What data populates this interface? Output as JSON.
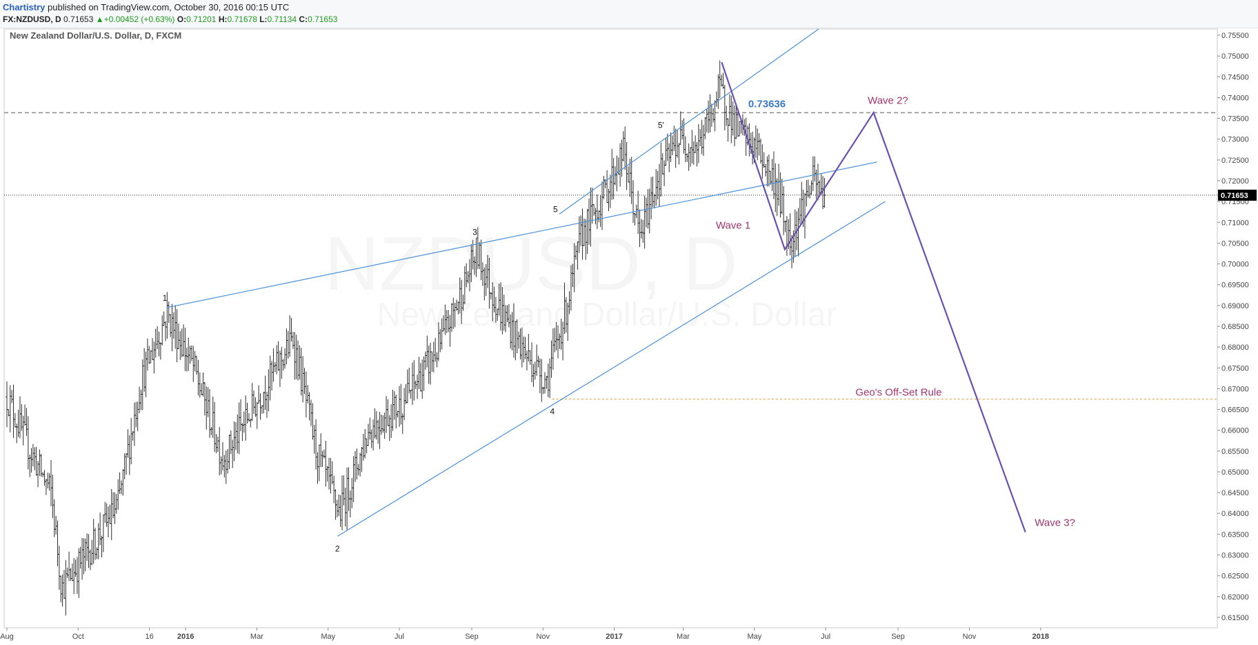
{
  "header": {
    "author": "Chartistry",
    "published_text": "published on TradingView.com, October 30, 2016 00:15 UTC",
    "symbol": "FX:NZDUSD, D",
    "last": "0.71653",
    "change": "+0.00452 (+0.63%)",
    "o_label": "O:",
    "o_value": "0.71201",
    "h_label": "H:",
    "h_value": "0.71678",
    "l_label": "L:",
    "l_value": "0.71134",
    "c_label": "C:",
    "c_value": "0.71653"
  },
  "colors": {
    "bar": "#2b2b2b",
    "trendline": "#4a90d9",
    "wave_path": "#6a4fb0",
    "annotation": "#a0356e",
    "level_label": "#3a78c8",
    "dashed_level": "#8a8a8a",
    "offset_line": "#e0a040",
    "price_badge_bg": "#000000",
    "price_badge_fg": "#ffffff"
  },
  "chart_data": {
    "type": "ohlc",
    "title": "New Zealand Dollar/U.S. Dollar, D, FXCM",
    "watermark": [
      "NZDUSD, D",
      "New Zealand Dollar/U.S. Dollar"
    ],
    "ylim": [
      0.6125,
      0.7565
    ],
    "y_ticks": [
      "0.75500",
      "0.75000",
      "0.74500",
      "0.74000",
      "0.73500",
      "0.73000",
      "0.72500",
      "0.72000",
      "0.71500",
      "0.71000",
      "0.70500",
      "0.70000",
      "0.69500",
      "0.69000",
      "0.68500",
      "0.68000",
      "0.67500",
      "0.67000",
      "0.66500",
      "0.66000",
      "0.65500",
      "0.65000",
      "0.64500",
      "0.64000",
      "0.63500",
      "0.63000",
      "0.62500",
      "0.62000",
      "0.61500"
    ],
    "x_ticks": [
      "Aug",
      "Oct",
      "16",
      "2016",
      "Mar",
      "May",
      "Jul",
      "Sep",
      "Nov",
      "2017",
      "Mar",
      "May",
      "Jul",
      "Sep",
      "Nov",
      "2018"
    ],
    "x_range_days": [
      0,
      895
    ],
    "last_price": 0.71653,
    "last_price_label": "0.71653",
    "anchors": [
      {
        "d": 0,
        "p": 0.668
      },
      {
        "d": 20,
        "p": 0.655
      },
      {
        "d": 38,
        "p": 0.645
      },
      {
        "d": 47,
        "p": 0.622
      },
      {
        "d": 75,
        "p": 0.633
      },
      {
        "d": 95,
        "p": 0.642
      },
      {
        "d": 115,
        "p": 0.672
      },
      {
        "d": 137,
        "p": 0.688
      },
      {
        "d": 160,
        "p": 0.675
      },
      {
        "d": 185,
        "p": 0.653
      },
      {
        "d": 210,
        "p": 0.665
      },
      {
        "d": 245,
        "p": 0.682
      },
      {
        "d": 265,
        "p": 0.655
      },
      {
        "d": 285,
        "p": 0.64
      },
      {
        "d": 310,
        "p": 0.66
      },
      {
        "d": 340,
        "p": 0.667
      },
      {
        "d": 370,
        "p": 0.68
      },
      {
        "d": 392,
        "p": 0.695
      },
      {
        "d": 402,
        "p": 0.703
      },
      {
        "d": 420,
        "p": 0.69
      },
      {
        "d": 445,
        "p": 0.678
      },
      {
        "d": 462,
        "p": 0.672
      },
      {
        "d": 478,
        "p": 0.688
      },
      {
        "d": 492,
        "p": 0.707
      },
      {
        "d": 510,
        "p": 0.716
      },
      {
        "d": 528,
        "p": 0.727
      },
      {
        "d": 542,
        "p": 0.706
      },
      {
        "d": 556,
        "p": 0.72
      },
      {
        "d": 575,
        "p": 0.73
      },
      {
        "d": 592,
        "p": 0.728
      },
      {
        "d": 610,
        "p": 0.742
      },
      {
        "d": 625,
        "p": 0.732
      },
      {
        "d": 642,
        "p": 0.728
      },
      {
        "d": 660,
        "p": 0.718
      },
      {
        "d": 670,
        "p": 0.705
      },
      {
        "d": 680,
        "p": 0.713
      },
      {
        "d": 690,
        "p": 0.72
      },
      {
        "d": 700,
        "p": 0.716
      }
    ],
    "wave_points": [
      {
        "label": "1",
        "d": 137,
        "p": 0.6895
      },
      {
        "label": "2",
        "d": 283,
        "p": 0.6345
      },
      {
        "label": "3",
        "d": 403,
        "p": 0.7053
      },
      {
        "label": "4",
        "d": 467,
        "p": 0.6672
      },
      {
        "label": "5",
        "d": 472,
        "p": 0.7105
      },
      {
        "label": "5'",
        "d": 560,
        "p": 0.731
      }
    ],
    "trendlines": [
      {
        "from": {
          "d": 137,
          "p": 0.6895
        },
        "to": {
          "d": 745,
          "p": 0.7245
        }
      },
      {
        "from": {
          "d": 283,
          "p": 0.6345
        },
        "to": {
          "d": 752,
          "p": 0.715
        }
      },
      {
        "from": {
          "d": 473,
          "p": 0.712
        },
        "to": {
          "d": 695,
          "p": 0.7565
        }
      }
    ],
    "wave_path": [
      {
        "d": 612,
        "p": 0.7485
      },
      {
        "d": 666,
        "p": 0.7035
      },
      {
        "d": 742,
        "p": 0.7364
      },
      {
        "d": 872,
        "p": 0.6355
      }
    ],
    "resistance_level": {
      "p": 0.73636,
      "label": "0.73636"
    },
    "offset_level": {
      "p": 0.6675,
      "from_d": 467,
      "label": "Geo's Off-Set Rule"
    },
    "annotations": [
      {
        "text": "Wave 1",
        "d": 607,
        "p": 0.7085
      },
      {
        "text": "Wave 2?",
        "d": 737,
        "p": 0.7385
      },
      {
        "text": "Wave 3?",
        "d": 880,
        "p": 0.637
      }
    ]
  }
}
